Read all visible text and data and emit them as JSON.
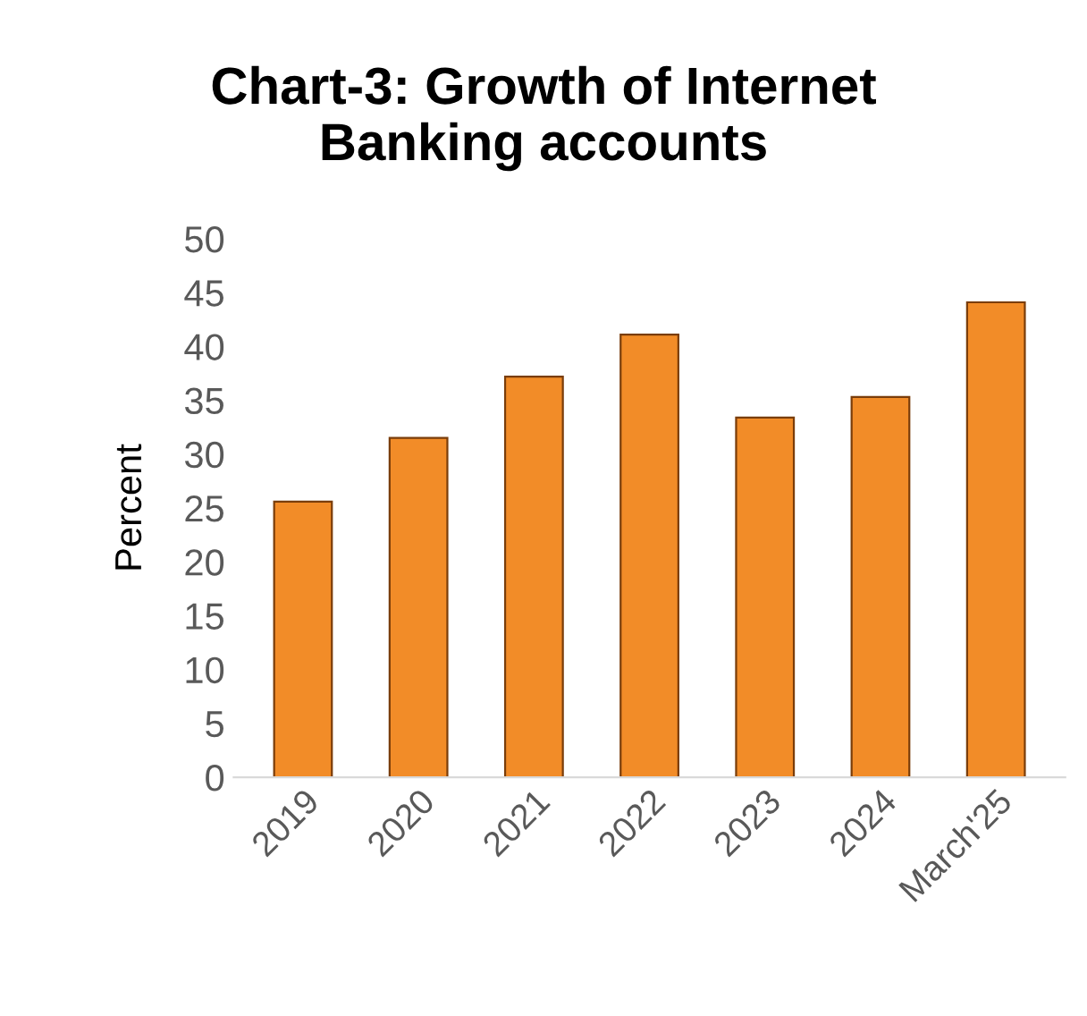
{
  "chart_data": {
    "type": "bar",
    "title": "Chart-3: Growth of Internet\nBanking accounts",
    "ylabel": "Percent",
    "categories": [
      "2019",
      "2020",
      "2021",
      "2022",
      "2023",
      "2024",
      "March'25"
    ],
    "values": [
      25.6,
      31.5,
      37.2,
      41.1,
      33.4,
      35.3,
      44.1
    ],
    "color": "#f28c28",
    "ylim": [
      0,
      50
    ],
    "yticks": [
      0,
      5,
      10,
      15,
      20,
      25,
      30,
      35,
      40,
      45,
      50
    ],
    "grid": false
  }
}
